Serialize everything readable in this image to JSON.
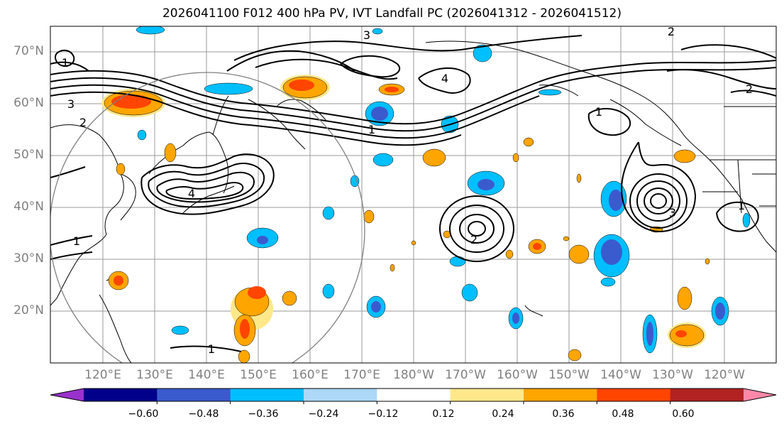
{
  "title": "2026041100 F012 400 hPa PV, IVT Landfall PC (2026041312 - 2026041512)",
  "latitude_labels": [
    "70°N",
    "60°N",
    "50°N",
    "40°N",
    "30°N",
    "20°N"
  ],
  "longitude_labels": [
    "120°E",
    "130°E",
    "140°E",
    "150°E",
    "160°E",
    "170°E",
    "180°W",
    "170°W",
    "160°W",
    "150°W",
    "140°W",
    "130°W",
    "120°W"
  ],
  "pv_contour_labels": [
    "1",
    "2",
    "3",
    "4"
  ],
  "colorbar": {
    "tick_labels": [
      "−0.60",
      "−0.48",
      "−0.36",
      "−0.24",
      "−0.12",
      "0.12",
      "0.24",
      "0.36",
      "0.48",
      "0.60"
    ],
    "colors": [
      "#9932CC",
      "#00008B",
      "#3A5BCD",
      "#00BFFF",
      "#ADD8F7",
      "#FFFFFF",
      "#FFE88A",
      "#FFA500",
      "#FF4500",
      "#B22222",
      "#FF88AA"
    ]
  }
}
